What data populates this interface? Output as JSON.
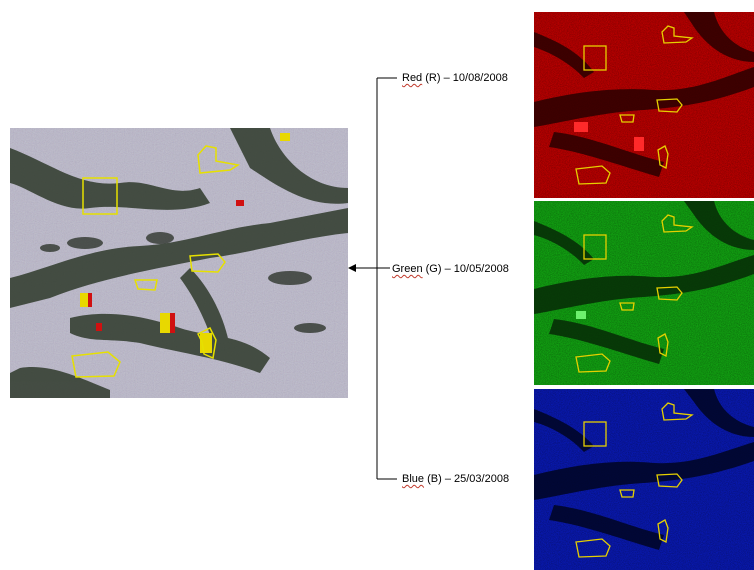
{
  "bands": [
    {
      "abbr_word": "Red",
      "code": "(R)",
      "date": "10/08/2008",
      "color": "#d40000"
    },
    {
      "abbr_word": "Green",
      "code": "(G)",
      "date": "10/05/2008",
      "color": "#14b814"
    },
    {
      "abbr_word": "Blue",
      "code": "(B)",
      "date": "25/03/2008",
      "color": "#0a1cc8"
    }
  ],
  "separator": "–",
  "composite": {
    "tone": "#b9b6c9",
    "outline_color": "#e6e000"
  },
  "icons": {
    "arrow": "arrow-left-icon"
  }
}
